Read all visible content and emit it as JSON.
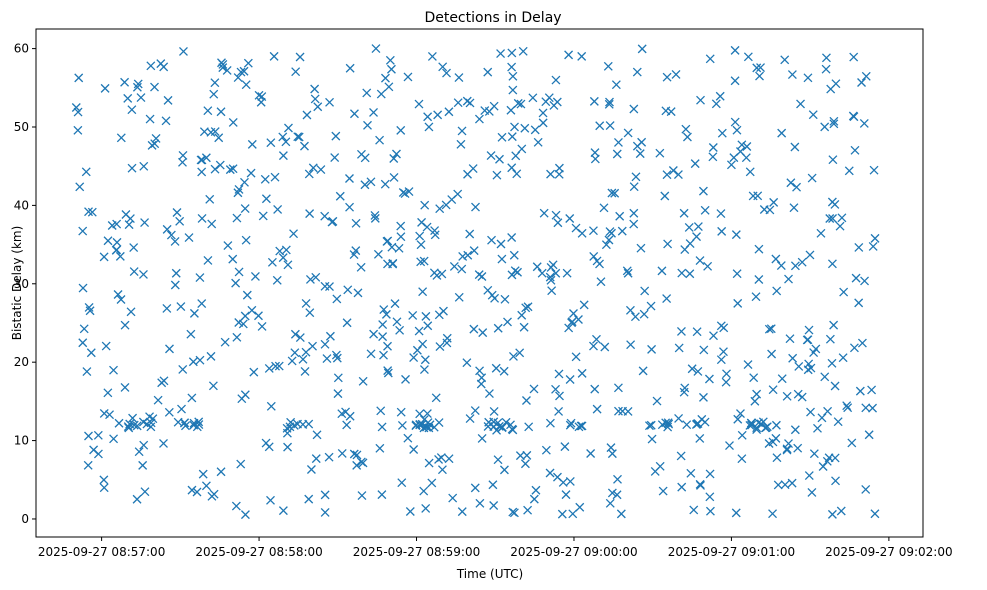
{
  "chart_data": {
    "type": "scatter",
    "title": "Detections in Delay",
    "xlabel": "Time (UTC)",
    "ylabel": "Bistatic Delay (km)",
    "marker": "x",
    "color": "#1f77b4",
    "grid": false,
    "legend": "none",
    "xlim": [
      "2025-09-27 08:56:35",
      "2025-09-27 09:02:13"
    ],
    "ylim": [
      -2.3,
      62.5
    ],
    "x_ticks": [
      "2025-09-27 08:57:00",
      "2025-09-27 08:58:00",
      "2025-09-27 08:59:00",
      "2025-09-27 09:00:00",
      "2025-09-27 09:01:00",
      "2025-09-27 09:02:00"
    ],
    "y_ticks": [
      0,
      10,
      20,
      30,
      40,
      50,
      60
    ],
    "series": [
      {
        "x_start": "2025-09-27 08:56:50",
        "x_end": "2025-09-27 09:01:55",
        "y_min": 0.5,
        "y_max": 60,
        "count": 900,
        "distribution": "uniform random",
        "notes": "dense horizontal clusters near 12 km"
      }
    ]
  }
}
